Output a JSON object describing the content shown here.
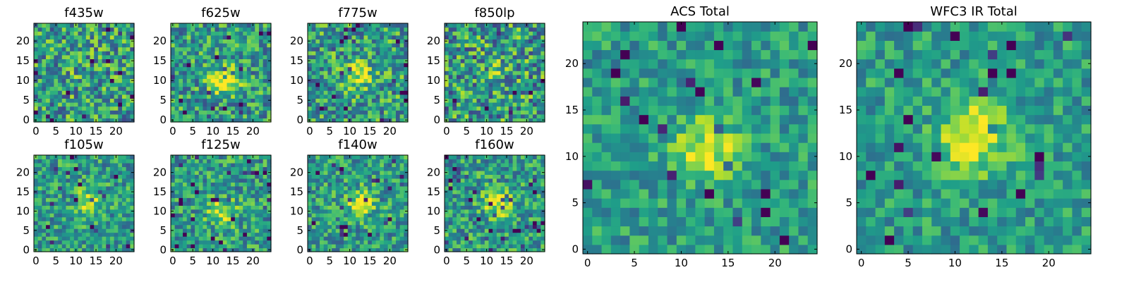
{
  "chart_data": [
    {
      "type": "heatmap",
      "title": "f435w",
      "grid_size": [
        25,
        25
      ],
      "xlim": [
        0,
        25
      ],
      "ylim": [
        0,
        25
      ],
      "xticks": [
        0,
        5,
        10,
        15,
        20
      ],
      "yticks": [
        0,
        5,
        10,
        15,
        20
      ],
      "colormap": "viridis",
      "peak_center": [
        12,
        12
      ],
      "peak_strength": 0.05,
      "noise": 0.34
    },
    {
      "type": "heatmap",
      "title": "f625w",
      "grid_size": [
        25,
        25
      ],
      "xlim": [
        0,
        25
      ],
      "ylim": [
        0,
        25
      ],
      "xticks": [
        0,
        5,
        10,
        15,
        20
      ],
      "yticks": [
        0,
        5,
        10,
        15,
        20
      ],
      "colormap": "viridis",
      "peak_center": [
        13,
        10
      ],
      "peak_strength": 0.45,
      "noise": 0.3
    },
    {
      "type": "heatmap",
      "title": "f775w",
      "grid_size": [
        25,
        25
      ],
      "xlim": [
        0,
        25
      ],
      "ylim": [
        0,
        25
      ],
      "xticks": [
        0,
        5,
        10,
        15,
        20
      ],
      "yticks": [
        0,
        5,
        10,
        15,
        20
      ],
      "colormap": "viridis",
      "peak_center": [
        12,
        11
      ],
      "peak_strength": 0.35,
      "noise": 0.32
    },
    {
      "type": "heatmap",
      "title": "f850lp",
      "grid_size": [
        25,
        25
      ],
      "xlim": [
        0,
        25
      ],
      "ylim": [
        0,
        25
      ],
      "xticks": [
        0,
        5,
        10,
        15,
        20
      ],
      "yticks": [
        0,
        5,
        10,
        15,
        20
      ],
      "colormap": "viridis",
      "peak_center": [
        12,
        12
      ],
      "peak_strength": 0.1,
      "noise": 0.36
    },
    {
      "type": "heatmap",
      "title": "f105w",
      "grid_size": [
        25,
        25
      ],
      "xlim": [
        0,
        25
      ],
      "ylim": [
        0,
        25
      ],
      "xticks": [
        0,
        5,
        10,
        15,
        20
      ],
      "yticks": [
        0,
        5,
        10,
        15,
        20
      ],
      "colormap": "viridis",
      "peak_center": [
        13,
        12
      ],
      "peak_strength": 0.35,
      "noise": 0.26
    },
    {
      "type": "heatmap",
      "title": "f125w",
      "grid_size": [
        25,
        25
      ],
      "xlim": [
        0,
        25
      ],
      "ylim": [
        0,
        25
      ],
      "xticks": [
        0,
        5,
        10,
        15,
        20
      ],
      "yticks": [
        0,
        5,
        10,
        15,
        20
      ],
      "colormap": "viridis",
      "peak_center": [
        12,
        10
      ],
      "peak_strength": 0.35,
      "noise": 0.27
    },
    {
      "type": "heatmap",
      "title": "f140w",
      "grid_size": [
        25,
        25
      ],
      "xlim": [
        0,
        25
      ],
      "ylim": [
        0,
        25
      ],
      "xticks": [
        0,
        5,
        10,
        15,
        20
      ],
      "yticks": [
        0,
        5,
        10,
        15,
        20
      ],
      "colormap": "viridis",
      "peak_center": [
        13,
        12
      ],
      "peak_strength": 0.4,
      "noise": 0.26
    },
    {
      "type": "heatmap",
      "title": "f160w",
      "grid_size": [
        25,
        25
      ],
      "xlim": [
        0,
        25
      ],
      "ylim": [
        0,
        25
      ],
      "xticks": [
        0,
        5,
        10,
        15,
        20
      ],
      "yticks": [
        0,
        5,
        10,
        15,
        20
      ],
      "colormap": "viridis",
      "peak_center": [
        13,
        12
      ],
      "peak_strength": 0.4,
      "noise": 0.27
    },
    {
      "type": "heatmap",
      "title": "ACS Total",
      "grid_size": [
        25,
        25
      ],
      "xlim": [
        0,
        25
      ],
      "ylim": [
        0,
        25
      ],
      "xticks": [
        0,
        5,
        10,
        15,
        20
      ],
      "yticks": [
        0,
        5,
        10,
        15,
        20
      ],
      "colormap": "viridis",
      "peak_center": [
        13,
        11
      ],
      "peak_strength": 0.4,
      "noise": 0.2
    },
    {
      "type": "heatmap",
      "title": "WFC3 IR Total",
      "grid_size": [
        25,
        25
      ],
      "xlim": [
        0,
        25
      ],
      "ylim": [
        0,
        25
      ],
      "xticks": [
        0,
        5,
        10,
        15,
        20
      ],
      "yticks": [
        0,
        5,
        10,
        15,
        20
      ],
      "colormap": "viridis",
      "peak_center": [
        12,
        12
      ],
      "peak_strength": 0.5,
      "noise": 0.2
    }
  ]
}
